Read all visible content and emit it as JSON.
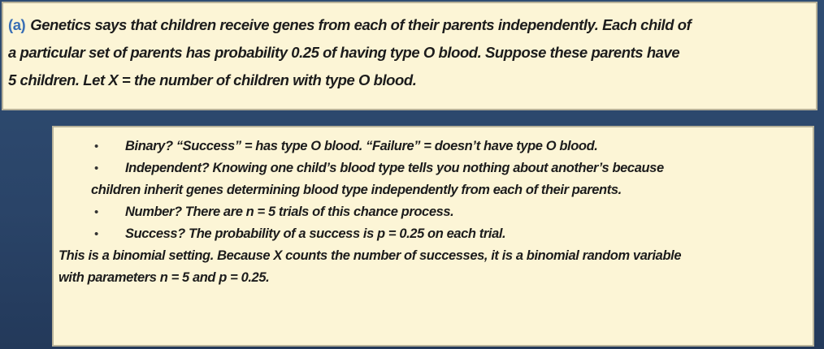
{
  "problem": {
    "label": "(a)",
    "lines": [
      "Genetics says that children receive genes from each of their parents independently. Each child of",
      "a particular set of parents has probability 0.25 of having type O blood. Suppose these parents have",
      "5 children. Let X = the number of children with type O blood."
    ]
  },
  "solution": {
    "bullets": [
      {
        "lines": [
          "Binary? “Success” = has type O blood. “Failure” = doesn’t have type O blood."
        ]
      },
      {
        "lines": [
          "Independent? Knowing one child’s blood type tells you nothing about another’s because",
          "children inherit genes determining blood type independently from each of their parents."
        ]
      },
      {
        "lines": [
          "Number? There are n = 5 trials of this chance process."
        ]
      },
      {
        "lines": [
          "Success? The probability of a success is p = 0.25 on each trial."
        ]
      }
    ],
    "conclusion": {
      "lines": [
        "This is a binomial setting. Because X counts the number of successes, it is a binomial random variable",
        "with parameters n = 5 and p = 0.25."
      ]
    }
  }
}
